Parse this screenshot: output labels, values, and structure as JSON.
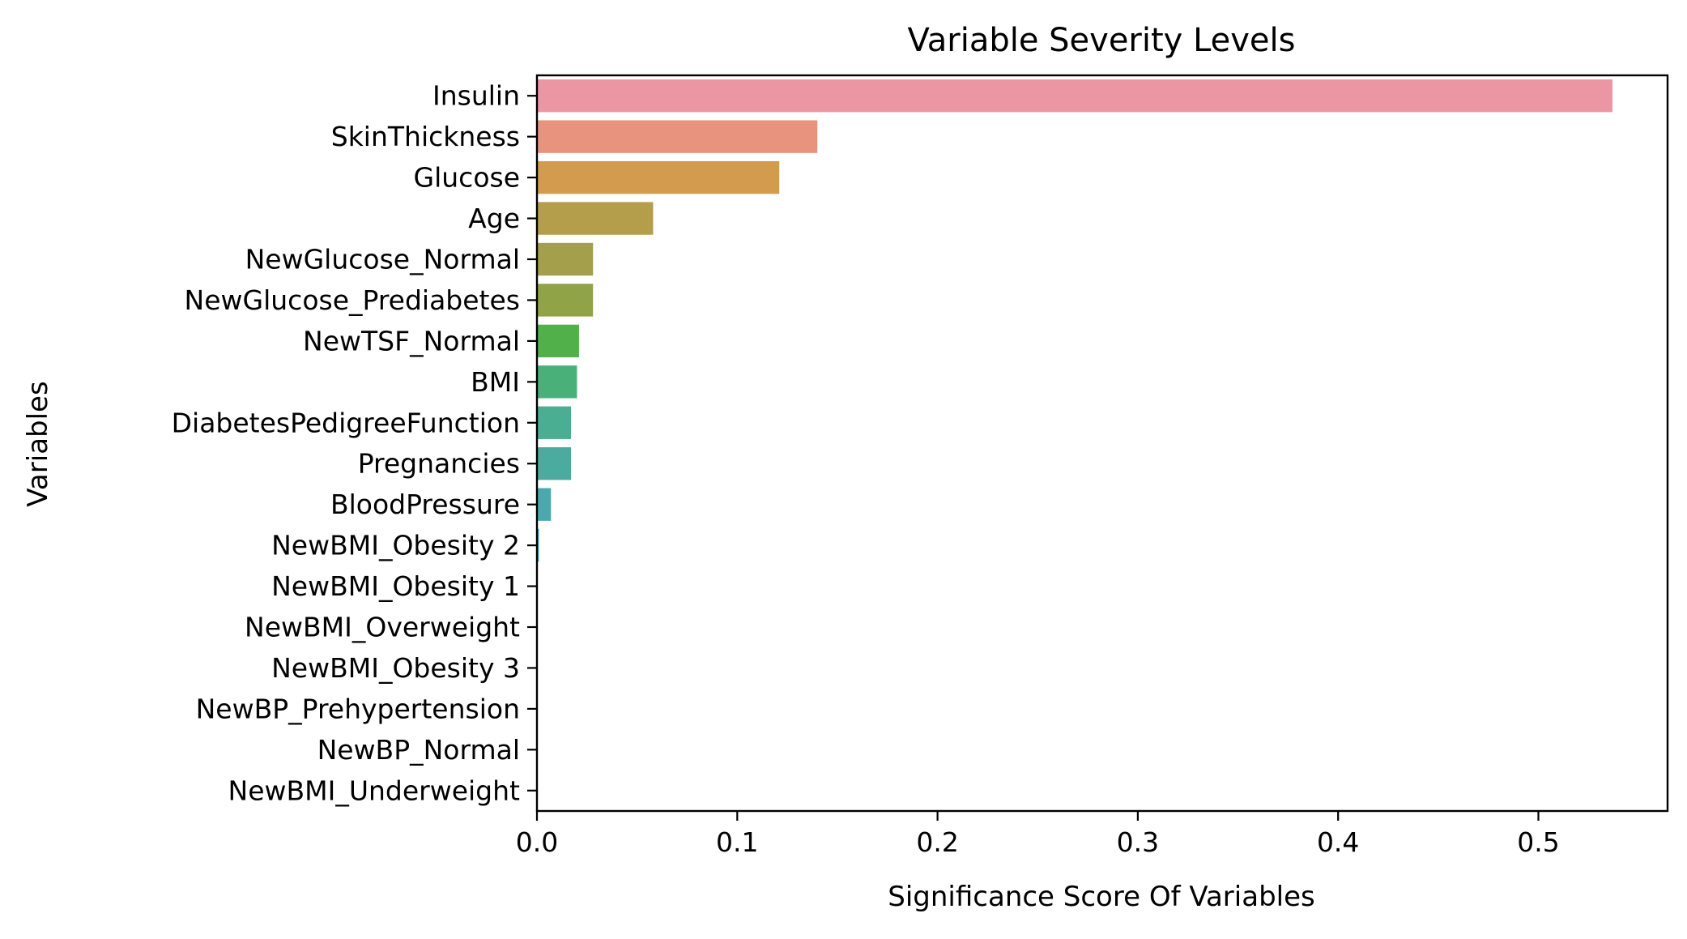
{
  "chart_data": {
    "type": "bar",
    "orientation": "horizontal",
    "title": "Variable Severity Levels",
    "xlabel": "Significance Score Of Variables",
    "ylabel": "Variables",
    "xlim": [
      0,
      0.5645
    ],
    "xticks": [
      0.0,
      0.1,
      0.2,
      0.3,
      0.4,
      0.5
    ],
    "xtick_labels": [
      "0.0",
      "0.1",
      "0.2",
      "0.3",
      "0.4",
      "0.5"
    ],
    "grid": false,
    "legend": "none",
    "categories": [
      "Insulin",
      "SkinThickness",
      "Glucose",
      "Age",
      "NewGlucose_Normal",
      "NewGlucose_Prediabetes",
      "NewTSF_Normal",
      "BMI",
      "DiabetesPedigreeFunction",
      "Pregnancies",
      "BloodPressure",
      "NewBMI_Obesity 2",
      "NewBMI_Obesity 1",
      "NewBMI_Overweight",
      "NewBMI_Obesity 3",
      "NewBP_Prehypertension",
      "NewBP_Normal",
      "NewBMI_Underweight"
    ],
    "values": [
      0.537,
      0.14,
      0.121,
      0.058,
      0.028,
      0.028,
      0.021,
      0.02,
      0.017,
      0.017,
      0.007,
      0.001,
      0.0,
      0.0,
      0.0,
      0.0,
      0.0,
      0.0
    ],
    "colors": [
      "#ec96a3",
      "#e8937d",
      "#d39b4e",
      "#b49d4b",
      "#a49f4a",
      "#90a447",
      "#52b04b",
      "#4ab07a",
      "#4aae93",
      "#4bab9f",
      "#4ba9ad",
      "#4ba6c0",
      "#4f9fd7",
      "#7f96e8",
      "#a48ded",
      "#c783ec",
      "#e37ae0",
      "#ea82bf"
    ]
  }
}
